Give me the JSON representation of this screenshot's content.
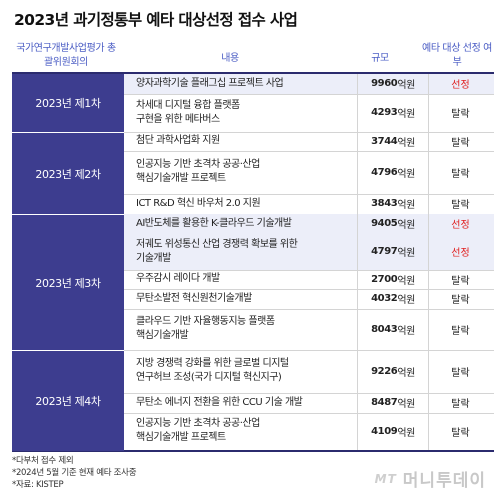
{
  "title": "2023년 과기정통부 예타 대상선정 접수 사업",
  "headers": {
    "committee": "국가연구개발사업평가 총괄위원회의",
    "content": "내용",
    "scale": "규모",
    "result": "예타 대상 선정 여부"
  },
  "groups": [
    "2023년 제1차",
    "2023년 제2차",
    "2023년 제3차",
    "2023년 제4차"
  ],
  "rows": [
    {
      "line1": "양자과학기술 플래그십 프로젝트 사업",
      "line2": "",
      "amount": "9960",
      "unit": "억원",
      "result": "선정"
    },
    {
      "line1": "차세대 디지털 융합 플랫폼",
      "line2": "구현을 위한 메타버스",
      "amount": "4293",
      "unit": "억원",
      "result": "탈락"
    },
    {
      "line1": "첨단 과학사업화 지원",
      "line2": "",
      "amount": "3744",
      "unit": "억원",
      "result": "탈락"
    },
    {
      "line1": "인공지능 기반 초격차 공공·산업",
      "line2": "핵심기술개발 프로젝트",
      "amount": "4796",
      "unit": "억원",
      "result": "탈락"
    },
    {
      "line1": "ICT R&D 혁신 바우처 2.0 지원",
      "line2": "",
      "amount": "3843",
      "unit": "억원",
      "result": "탈락"
    },
    {
      "line1": "AI반도체를 활용한 K-클라우드 기술개발",
      "line2": "",
      "amount": "9405",
      "unit": "억원",
      "result": "선정"
    },
    {
      "line1": "저궤도 위성통신 산업 경쟁력 확보를 위한",
      "line2": "기술개발",
      "amount": "4797",
      "unit": "억원",
      "result": "선정"
    },
    {
      "line1": "우주감시 레이다 개발",
      "line2": "",
      "amount": "2700",
      "unit": "억원",
      "result": "탈락"
    },
    {
      "line1": "무탄소발전 혁신원천기술개발",
      "line2": "",
      "amount": "4032",
      "unit": "억원",
      "result": "탈락"
    },
    {
      "line1": "클라우드 기반 자율행동지능 플랫폼",
      "line2": "핵심기술개발",
      "amount": "8043",
      "unit": "억원",
      "result": "탈락"
    },
    {
      "line1": "지방 경쟁력 강화를 위한 글로벌 디지털",
      "line2": "연구허브 조성(국가 디지털 혁신지구)",
      "amount": "9226",
      "unit": "억원",
      "result": "탈락"
    },
    {
      "line1": "무탄소 에너지 전환을 위한 CCU 기술 개발",
      "line2": "",
      "amount": "8487",
      "unit": "억원",
      "result": "탈락"
    },
    {
      "line1": "인공지능 기반 초격차 공공·산업",
      "line2": "핵심기술개발 프로젝트",
      "amount": "4109",
      "unit": "억원",
      "result": "탈락"
    }
  ],
  "notes": [
    "*다부처 접수 제외",
    "*2024년 5월 기준 현재 예타 조사중",
    "*자료: KISTEP"
  ],
  "brand": {
    "mark": "MT",
    "name": "머니투데이"
  },
  "colors": {
    "group_bg": "#3d3d8f",
    "header_text": "#4a5cc4",
    "selected_text": "#e02020",
    "selected_row_bg": "#eceef9"
  }
}
